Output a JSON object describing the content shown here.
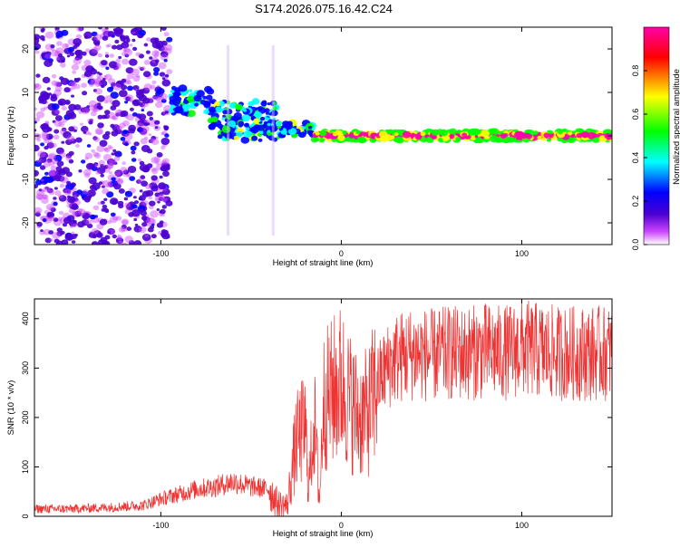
{
  "title": "S174.2026.075.16.42.C24",
  "chart_data": [
    {
      "type": "heatmap",
      "xlabel": "Height of straight line (km)",
      "ylabel": "Frequency (Hz)",
      "xlim": [
        -170,
        150
      ],
      "ylim": [
        -25,
        25
      ],
      "xticks": [
        -100,
        0,
        100
      ],
      "yticks": [
        -20,
        -10,
        0,
        10,
        20
      ],
      "colorbar": {
        "label": "Normalized spectral amplitude",
        "range": [
          0,
          1
        ],
        "ticks": [
          0.0,
          0.2,
          0.4,
          0.6,
          0.8
        ],
        "colors": [
          "#ffffff",
          "#cc44ff",
          "#4b00d1",
          "#0000ff",
          "#00ffff",
          "#00ff00",
          "#ffff00",
          "#ff0000",
          "#ff00aa"
        ]
      },
      "regions": [
        {
          "x": [
            -170,
            -95
          ],
          "freq": [
            -25,
            25
          ],
          "amplitude": 0.1,
          "pattern": "broadband noise"
        },
        {
          "x": [
            -95,
            -72
          ],
          "freq": [
            5,
            11
          ],
          "amplitude": 0.3
        },
        {
          "x": [
            -72,
            -35
          ],
          "freq": [
            -1,
            8
          ],
          "amplitude": 0.3
        },
        {
          "x": [
            -35,
            -15
          ],
          "freq": [
            0,
            3
          ],
          "amplitude": 0.4
        },
        {
          "x": [
            -15,
            150
          ],
          "freq": [
            -1,
            1
          ],
          "amplitude": 0.85,
          "pattern": "narrow band at 0 Hz"
        }
      ],
      "grid": false
    },
    {
      "type": "line",
      "xlabel": "Height of straight line (km)",
      "ylabel": "SNR (10 * v/v)",
      "xlim": [
        -170,
        150
      ],
      "ylim": [
        0,
        440
      ],
      "xticks": [
        -100,
        0,
        100
      ],
      "yticks": [
        0,
        100,
        200,
        300,
        400
      ],
      "color": "#ee3333",
      "grid": false,
      "series": [
        {
          "x": [
            -170,
            -150,
            -130,
            -110,
            -100,
            -90,
            -80,
            -70,
            -60,
            -50,
            -40,
            -35,
            -30,
            -25,
            -20,
            -18,
            -15,
            -12,
            -10,
            -5,
            0,
            5,
            10,
            15,
            20,
            25,
            30,
            40,
            50,
            60,
            70,
            80,
            90,
            100,
            110,
            120,
            130,
            140,
            150
          ],
          "y": [
            15,
            15,
            18,
            22,
            35,
            45,
            55,
            60,
            70,
            60,
            55,
            25,
            22,
            150,
            180,
            60,
            200,
            30,
            230,
            250,
            270,
            230,
            200,
            210,
            270,
            300,
            320,
            330,
            325,
            330,
            330,
            335,
            330,
            340,
            335,
            330,
            330,
            330,
            330
          ]
        }
      ]
    }
  ]
}
